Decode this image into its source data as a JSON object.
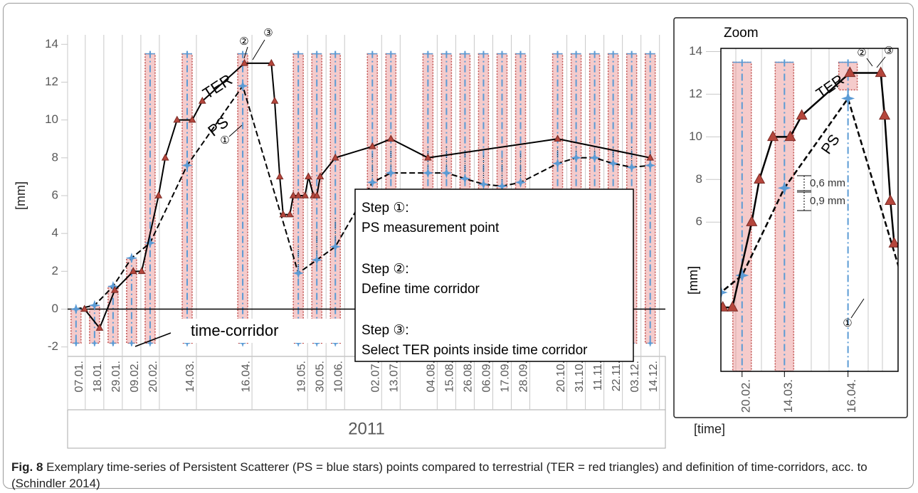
{
  "figure": {
    "caption_label": "Fig. 8",
    "caption": "Exemplary time-series of Persistent Scatterer (PS = blue stars) points compared to terrestrial (TER = red triangles) and definition of time-corridors, acc. to (Schindler 2014)"
  },
  "chart_data": [
    {
      "type": "line",
      "year": "2011",
      "ylabel": "[mm]",
      "xlabel": "[time]",
      "x": [
        "07.01.",
        "18.01.",
        "29.01.",
        "09.02.",
        "20.02.",
        "14.03.",
        "16.04.",
        "19.05.",
        "30.05.",
        "10.06.",
        "02.07.",
        "13.07.",
        "04.08.",
        "15.08.",
        "26.08.",
        "06.09.",
        "17.09.",
        "28.09.",
        "20.10.",
        "31.10.",
        "11.11.",
        "22.11.",
        "03.12.",
        "14.12."
      ],
      "xlim": [
        "02.01.",
        "23.12."
      ],
      "ylim": [
        -2.5,
        14.5
      ],
      "yticks": [
        -2,
        0,
        2,
        4,
        6,
        8,
        10,
        12,
        14
      ],
      "series": [
        {
          "name": "PS",
          "line_color": "#000000",
          "line_style": "dashed",
          "marker": "star",
          "marker_color": "#5b9bd5",
          "values": [
            0,
            0.2,
            1.2,
            2.7,
            3.5,
            7.6,
            11.8,
            1.9,
            2.6,
            3.3,
            6.7,
            7.2,
            7.2,
            7.2,
            6.9,
            6.6,
            6.5,
            6.7,
            7.7,
            8.0,
            8.0,
            7.7,
            7.5,
            7.6
          ]
        },
        {
          "name": "TER",
          "line_color": "#000000",
          "line_style": "solid",
          "marker": "triangle",
          "marker_color": "#b5463c",
          "x": [
            "12.01.",
            "21.01.",
            "30.01.",
            "10.02.",
            "15.02.",
            "25.02.",
            "01.03.",
            "08.03.",
            "17.03.",
            "23.03.",
            "17.04.",
            "03.05.",
            "05.05.",
            "08.05.",
            "10.05.",
            "14.05.",
            "16.05.",
            "19.05.",
            "23.05.",
            "25.05.",
            "28.05.",
            "30.05.",
            "01.06.",
            "10.06.",
            "02.07.",
            "13.07.",
            "04.08.",
            "20.10.",
            "14.12."
          ],
          "values": [
            0,
            -1,
            1,
            2,
            2,
            6,
            8,
            10,
            10,
            11,
            13,
            13,
            11,
            7,
            5,
            5,
            6,
            6,
            6,
            7,
            6,
            6,
            7,
            8,
            8.6,
            9,
            8,
            9,
            8
          ]
        }
      ],
      "annotations": {
        "step1_marker": "①",
        "step2_marker": "②",
        "step3_marker": "③",
        "corridor_label": "time-corridor"
      },
      "steps": [
        {
          "title": "Step ①:",
          "text": "PS measurement point"
        },
        {
          "title": "Step ②:",
          "text": "Define time corridor"
        },
        {
          "title": "Step ③:",
          "text": "Select TER points inside time corridor"
        }
      ]
    },
    {
      "type": "zoom",
      "title": "Zoom",
      "ylabel": "[mm]",
      "xticks": [
        "20.02.",
        "14.03.",
        "16.04."
      ],
      "xlim": [
        "09.02.",
        "12.05."
      ],
      "ylim": [
        -1,
        14.15
      ],
      "yticks": [
        6,
        8,
        10,
        12,
        14
      ],
      "annotations": {
        "step1_marker": "①",
        "step2_marker": "②",
        "step3_marker": "③",
        "diff_ps": "0,6 mm",
        "diff_ter": "0,9 mm"
      }
    }
  ]
}
